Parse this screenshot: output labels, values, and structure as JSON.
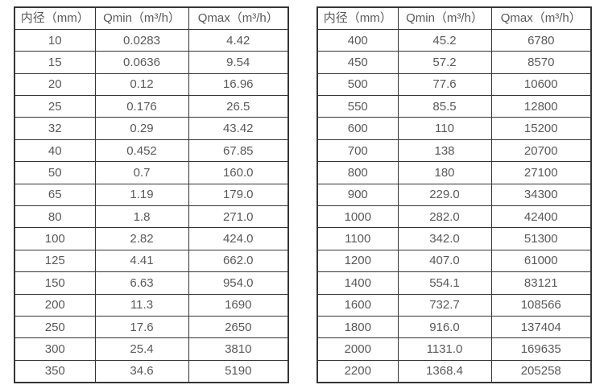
{
  "colors": {
    "background": "#ffffff",
    "border": "#353535",
    "text": "#595959"
  },
  "tables": [
    {
      "name": "flow-spec-small-diameters",
      "headers": [
        "内径（mm）",
        "Qmin（m³/h）",
        "Qmax（m³/h）"
      ],
      "rows": [
        [
          "10",
          "0.0283",
          "4.42"
        ],
        [
          "15",
          "0.0636",
          "9.54"
        ],
        [
          "20",
          "0.12",
          "16.96"
        ],
        [
          "25",
          "0.176",
          "26.5"
        ],
        [
          "32",
          "0.29",
          "43.42"
        ],
        [
          "40",
          "0.452",
          "67.85"
        ],
        [
          "50",
          "0.7",
          "160.0"
        ],
        [
          "65",
          "1.19",
          "179.0"
        ],
        [
          "80",
          "1.8",
          "271.0"
        ],
        [
          "100",
          "2.82",
          "424.0"
        ],
        [
          "125",
          "4.41",
          "662.0"
        ],
        [
          "150",
          "6.63",
          "954.0"
        ],
        [
          "200",
          "11.3",
          "1690"
        ],
        [
          "250",
          "17.6",
          "2650"
        ],
        [
          "300",
          "25.4",
          "3810"
        ],
        [
          "350",
          "34.6",
          "5190"
        ]
      ]
    },
    {
      "name": "flow-spec-large-diameters",
      "headers": [
        "内径（mm）",
        "Qmin（m³/h）",
        "Qmax（m³/h）"
      ],
      "rows": [
        [
          "400",
          "45.2",
          "6780"
        ],
        [
          "450",
          "57.2",
          "8570"
        ],
        [
          "500",
          "77.6",
          "10600"
        ],
        [
          "550",
          "85.5",
          "12800"
        ],
        [
          "600",
          "110",
          "15200"
        ],
        [
          "700",
          "138",
          "20700"
        ],
        [
          "800",
          "180",
          "27100"
        ],
        [
          "900",
          "229.0",
          "34300"
        ],
        [
          "1000",
          "282.0",
          "42400"
        ],
        [
          "1100",
          "342.0",
          "51300"
        ],
        [
          "1200",
          "407.0",
          "61000"
        ],
        [
          "1400",
          "554.1",
          "83121"
        ],
        [
          "1600",
          "732.7",
          "108566"
        ],
        [
          "1800",
          "916.0",
          "137404"
        ],
        [
          "2000",
          "1131.0",
          "169635"
        ],
        [
          "2200",
          "1368.4",
          "205258"
        ]
      ]
    }
  ]
}
